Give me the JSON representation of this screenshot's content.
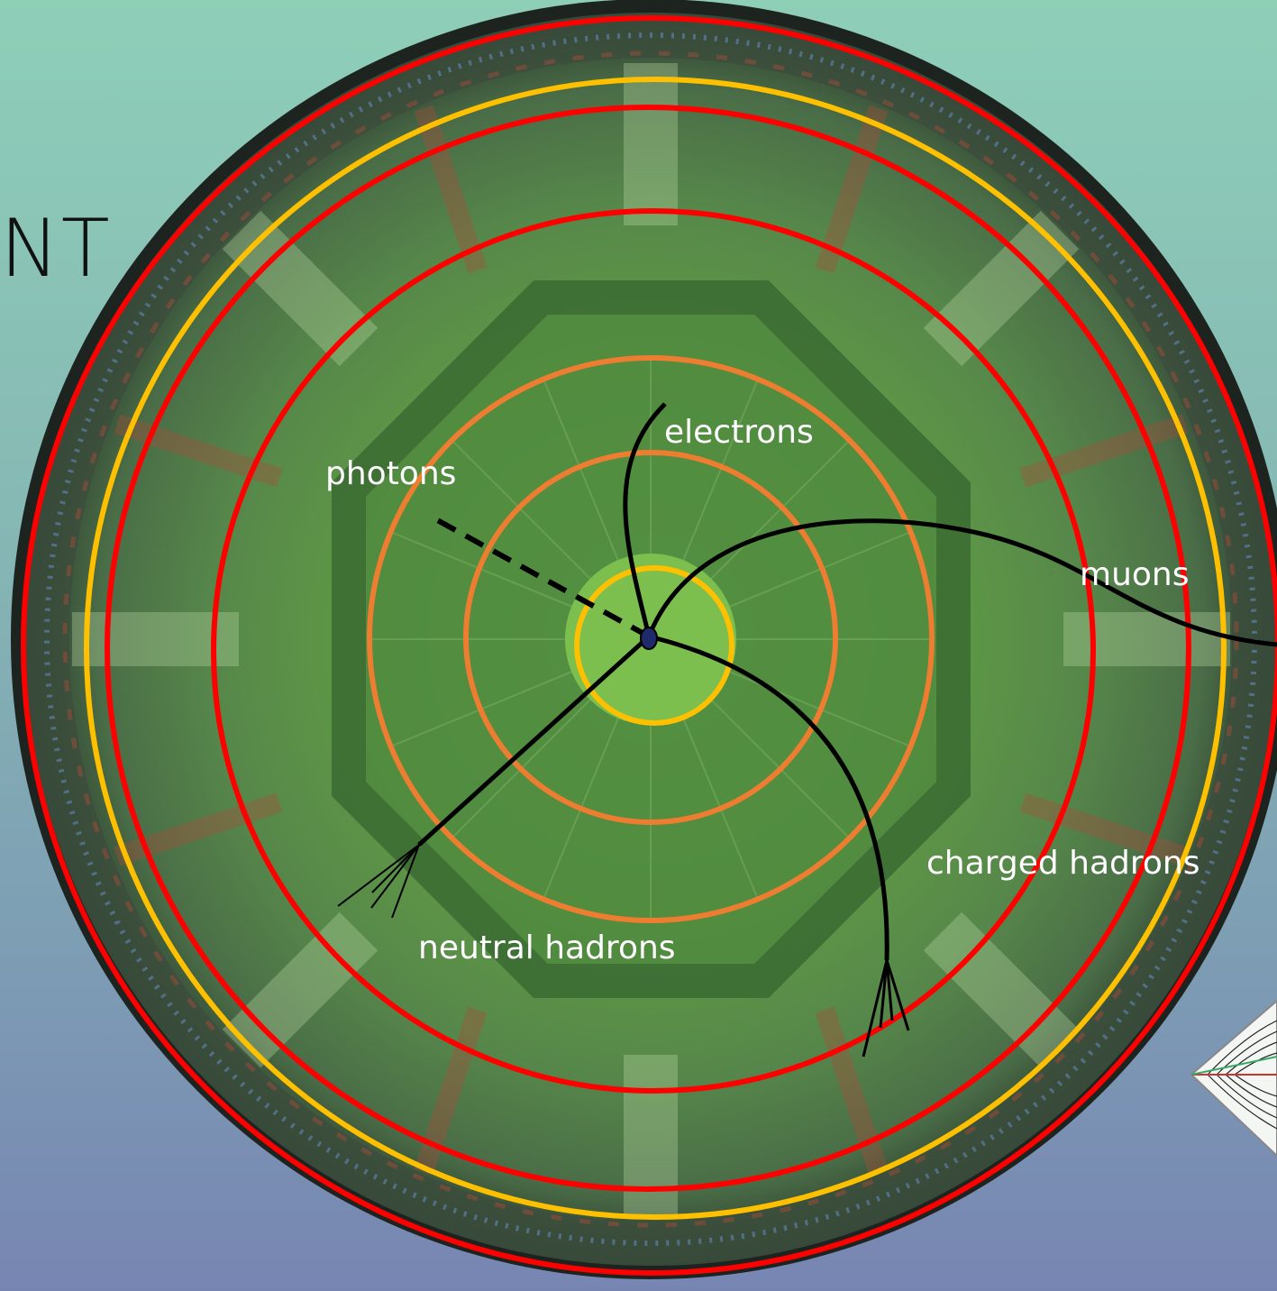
{
  "slide_title_fragment": "NT",
  "particle_labels": {
    "electrons": "electrons",
    "photons": "photons",
    "muons": "muons",
    "charged_hadrons": "charged hadrons",
    "neutral_hadrons": "neutral hadrons"
  },
  "colors": {
    "beam_pipe_ring": "#ffc000",
    "tracker_rings": "#ed7d31",
    "calorimeter_rings": "#ff0000",
    "magnet_ring": "#ffc000",
    "outer_ring": "#ff0000",
    "tracks": "#000000",
    "detector_overlay": "#6aa84f"
  }
}
